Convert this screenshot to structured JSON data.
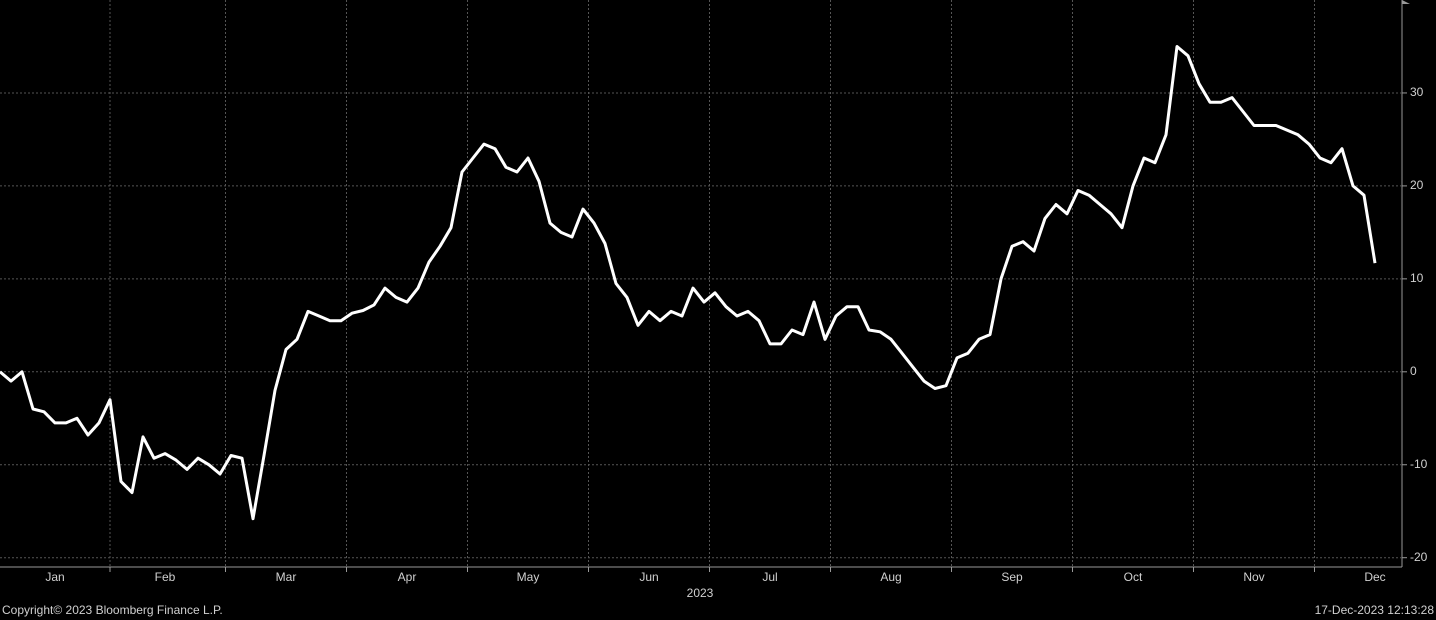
{
  "chart_data": {
    "type": "line",
    "xlabel": "2023",
    "footer_left": "Copyright© 2023 Bloomberg Finance L.P.",
    "footer_right": "17-Dec-2023 12:13:28",
    "categories": [
      null,
      null,
      null,
      null,
      null,
      "Jan",
      null,
      null,
      null,
      null,
      null,
      null,
      null,
      null,
      null,
      "Feb",
      null,
      null,
      null,
      null,
      null,
      null,
      null,
      null,
      null,
      null,
      "Mar",
      null,
      null,
      null,
      null,
      null,
      null,
      null,
      null,
      null,
      null,
      "Apr",
      null,
      null,
      null,
      null,
      null,
      null,
      null,
      null,
      null,
      null,
      "May",
      null,
      null,
      null,
      null,
      null,
      null,
      null,
      null,
      null,
      null,
      "Jun",
      null,
      null,
      null,
      null,
      null,
      null,
      null,
      null,
      null,
      null,
      "Jul",
      null,
      null,
      null,
      null,
      null,
      null,
      null,
      null,
      null,
      null,
      "Aug",
      null,
      null,
      null,
      null,
      null,
      null,
      null,
      null,
      null,
      null,
      "Sep",
      null,
      null,
      null,
      null,
      null,
      null,
      null,
      null,
      null,
      null,
      "Oct",
      null,
      null,
      null,
      null,
      null,
      null,
      null,
      null,
      null,
      null,
      "Nov",
      null,
      null,
      null,
      null,
      null,
      null,
      null,
      null,
      null,
      null,
      "Dec"
    ],
    "values": [
      0,
      -1,
      0,
      -4,
      -4.3,
      -5.5,
      -5.5,
      -5,
      -6.8,
      -5.5,
      -3,
      -11.8,
      -13,
      -7,
      -9.3,
      -8.8,
      -9.5,
      -10.5,
      -9.3,
      -10,
      -11,
      -9,
      -9.3,
      -15.8,
      -9,
      -2,
      2.4,
      3.5,
      6.5,
      6,
      5.5,
      5.5,
      6.3,
      6.6,
      7.2,
      9,
      8,
      7.5,
      9,
      11.8,
      13.5,
      15.5,
      21.5,
      23,
      24.5,
      24,
      22,
      21.5,
      23,
      20.5,
      16,
      15,
      14.5,
      17.5,
      16,
      13.8,
      9.5,
      8,
      5,
      6.5,
      5.5,
      6.5,
      6,
      9,
      7.5,
      8.5,
      7,
      6,
      6.5,
      5.5,
      3,
      3,
      4.5,
      4,
      7.5,
      3.5,
      6,
      7,
      7,
      4.5,
      4.3,
      3.5,
      2,
      0.5,
      -1,
      -1.8,
      -1.5,
      1.5,
      2,
      3.5,
      4,
      10,
      13.5,
      14,
      13,
      16.5,
      18,
      17,
      19.5,
      19,
      18,
      17,
      15.5,
      20,
      23,
      22.5,
      25.5,
      35,
      34,
      31,
      29,
      29,
      29.5,
      28,
      26.5,
      26.5,
      26.5,
      26,
      25.5,
      24.5,
      23,
      22.5,
      24,
      20,
      19,
      11.7
    ],
    "color": "#ffffff",
    "ylim": [
      -21,
      40
    ],
    "yticks": [
      -20,
      -10,
      0,
      10,
      20,
      30
    ],
    "grid": true
  }
}
